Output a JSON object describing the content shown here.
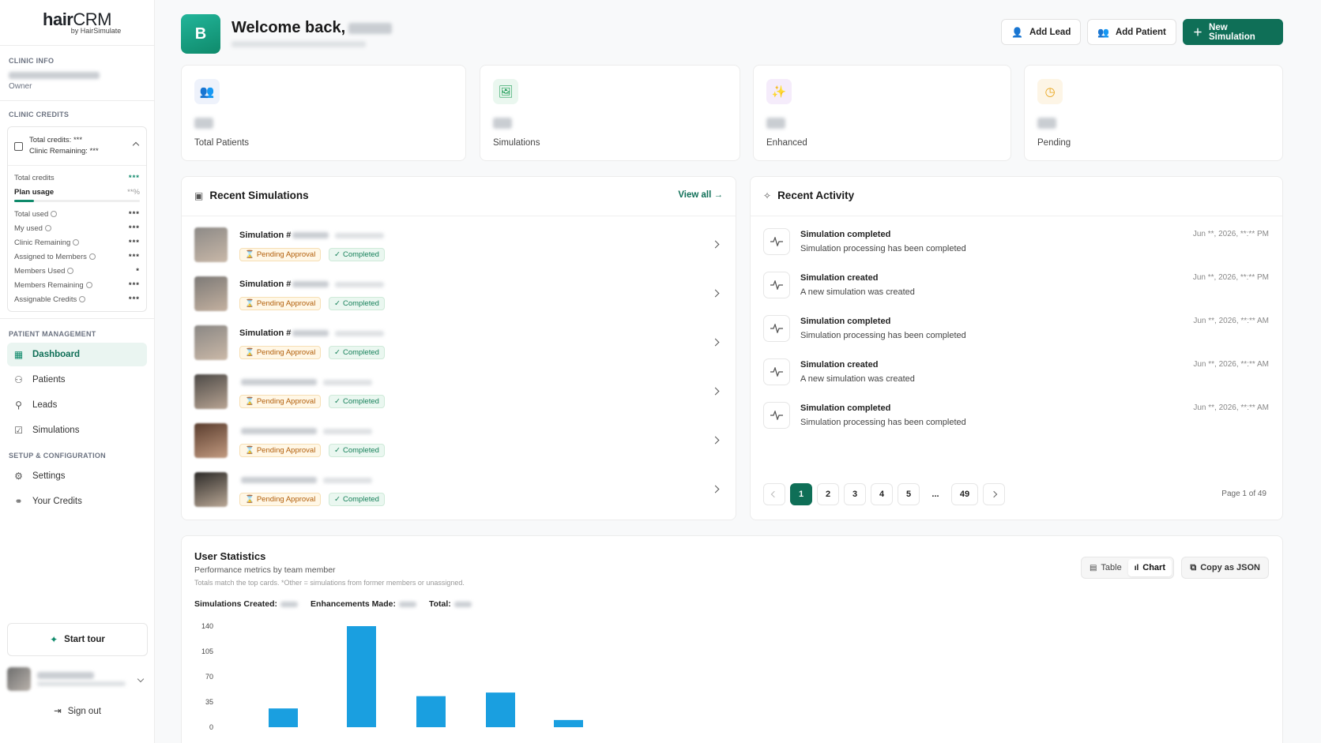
{
  "sidebar": {
    "logo_main_bold": "hair",
    "logo_main_light": "CRM",
    "logo_sub": "by HairSimulate",
    "clinic_info_label": "CLINIC INFO",
    "clinic_role": "Owner",
    "clinic_credits_label": "CLINIC CREDITS",
    "credits_head_total": "Total credits: ***",
    "credits_head_remaining": "Clinic Remaining: ***",
    "total_credits_label": "Total credits",
    "total_credits_value": "***",
    "plan_usage_label": "Plan usage",
    "plan_usage_value": "**%",
    "rows": [
      {
        "label": "Total used",
        "value": "***"
      },
      {
        "label": "My used",
        "value": "***"
      },
      {
        "label": "Clinic Remaining",
        "value": "***"
      },
      {
        "label": "Assigned to Members",
        "value": "***"
      },
      {
        "label": "Members Used",
        "value": "*"
      },
      {
        "label": "Members Remaining",
        "value": "***"
      },
      {
        "label": "Assignable Credits",
        "value": "***"
      }
    ],
    "patient_mgmt_label": "PATIENT MANAGEMENT",
    "nav": [
      {
        "label": "Dashboard",
        "icon": "grid-icon"
      },
      {
        "label": "Patients",
        "icon": "users-icon"
      },
      {
        "label": "Leads",
        "icon": "user-plus-icon"
      },
      {
        "label": "Simulations",
        "icon": "edit-icon"
      }
    ],
    "setup_label": "SETUP & CONFIGURATION",
    "setup_nav": [
      {
        "label": "Settings",
        "icon": "gear-icon"
      },
      {
        "label": "Your Credits",
        "icon": "link-icon"
      }
    ],
    "start_tour": "Start tour",
    "sign_out": "Sign out"
  },
  "header": {
    "badge_letter": "B",
    "welcome": "Welcome back,",
    "add_lead": "Add Lead",
    "add_patient": "Add Patient",
    "new_simulation": "New Simulation"
  },
  "stats": [
    {
      "label": "Total Patients",
      "color": "#eef2fb",
      "fg": "#3b5bdb",
      "glyph": "👥"
    },
    {
      "label": "Simulations",
      "color": "#eaf7ef",
      "fg": "#1f9d57",
      "glyph": "🖼"
    },
    {
      "label": "Enhanced",
      "color": "#f5ecfb",
      "fg": "#9c36b5",
      "glyph": "✨"
    },
    {
      "label": "Pending",
      "color": "#fdf5e6",
      "fg": "#e8a317",
      "glyph": "◷"
    }
  ],
  "recent_simulations": {
    "title": "Recent Simulations",
    "view_all": "View all →",
    "items": [
      {
        "title": "Simulation #",
        "pending": "Pending Approval",
        "completed": "Completed"
      },
      {
        "title": "Simulation #",
        "pending": "Pending Approval",
        "completed": "Completed"
      },
      {
        "title": "Simulation #",
        "pending": "Pending Approval",
        "completed": "Completed"
      },
      {
        "title": "",
        "pending": "Pending Approval",
        "completed": "Completed"
      },
      {
        "title": "",
        "pending": "Pending Approval",
        "completed": "Completed"
      },
      {
        "title": "",
        "pending": "Pending Approval",
        "completed": "Completed"
      }
    ]
  },
  "recent_activity": {
    "title": "Recent Activity",
    "items": [
      {
        "title": "Simulation completed",
        "desc": "Simulation processing has been completed",
        "time": "Jun **, 2026, **:** PM"
      },
      {
        "title": "Simulation created",
        "desc": "A new simulation was created",
        "time": "Jun **, 2026, **:** PM"
      },
      {
        "title": "Simulation completed",
        "desc": "Simulation processing has been completed",
        "time": "Jun **, 2026, **:** AM"
      },
      {
        "title": "Simulation created",
        "desc": "A new simulation was created",
        "time": "Jun **, 2026, **:** AM"
      },
      {
        "title": "Simulation completed",
        "desc": "Simulation processing has been completed",
        "time": "Jun **, 2026, **:** AM"
      }
    ],
    "pages": [
      "1",
      "2",
      "3",
      "4",
      "5",
      "...",
      "49"
    ],
    "page_of": "Page 1 of 49"
  },
  "user_statistics": {
    "title": "User Statistics",
    "subtitle": "Performance metrics by team member",
    "note": "Totals match the top cards. *Other = simulations from former members or unassigned.",
    "sim_created_label": "Simulations Created:",
    "enh_made_label": "Enhancements Made:",
    "total_label": "Total:",
    "table_btn": "Table",
    "chart_btn": "Chart",
    "copy_btn": "Copy as JSON"
  },
  "chart_data": {
    "type": "bar",
    "values": [
      26,
      140,
      43,
      48,
      10
    ],
    "yticks": [
      "140",
      "105",
      "70",
      "35",
      "0"
    ],
    "ylim": [
      0,
      140
    ],
    "color": "#1a9fe0"
  }
}
